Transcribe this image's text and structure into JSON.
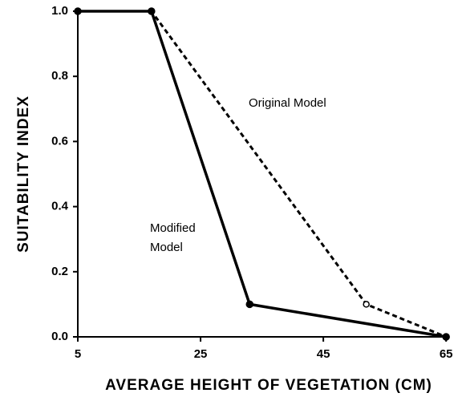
{
  "chart_data": {
    "type": "line",
    "xlabel": "AVERAGE HEIGHT OF VEGETATION (CM)",
    "ylabel": "SUITABILITY INDEX",
    "series": [
      {
        "name": "Original Model",
        "color": "#000000",
        "dash": true,
        "marker": "hollow",
        "x": [
          5,
          17,
          52,
          65
        ],
        "values": [
          1.0,
          1.0,
          0.1,
          0.0
        ]
      },
      {
        "name": "Modified Model",
        "color": "#000000",
        "dash": false,
        "marker": "filled",
        "x": [
          5,
          17,
          33,
          65
        ],
        "values": [
          1.0,
          1.0,
          0.1,
          0.0
        ]
      }
    ],
    "annotations": [
      {
        "lines": [
          "Original Model"
        ]
      },
      {
        "lines": [
          "Modified",
          "Model"
        ]
      }
    ],
    "xlim": [
      5,
      65.5
    ],
    "xticks": [
      5,
      25,
      45,
      65
    ],
    "ylim": [
      0,
      1.0
    ],
    "yticks": [
      {
        "value": 0,
        "label": "0.0"
      },
      0.2,
      0.4,
      0.6,
      0.8,
      {
        "value": 1,
        "label": "1.0"
      }
    ],
    "grid": false
  }
}
